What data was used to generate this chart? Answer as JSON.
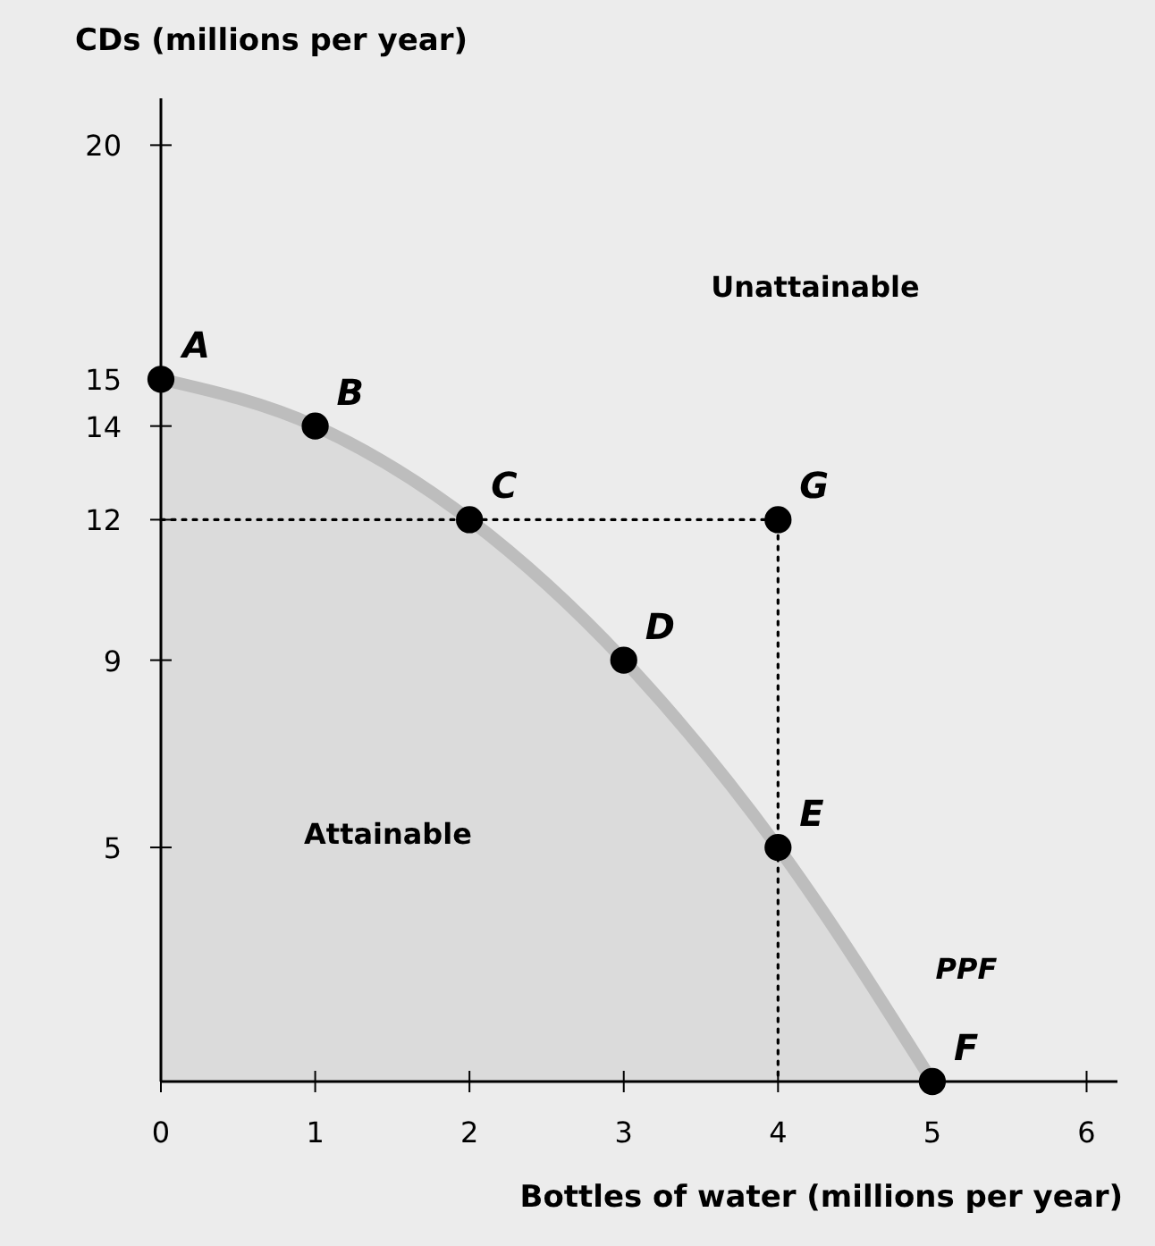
{
  "chart_data": {
    "type": "line",
    "ylabel": "CDs (millions per year)",
    "xlabel": "Bottles of water (millions per year)",
    "xlim": [
      0,
      6.2
    ],
    "xticks": [
      0,
      1,
      2,
      3,
      4,
      5,
      6
    ],
    "ylim": [
      0,
      21
    ],
    "yticks": [
      5,
      9,
      12,
      14,
      15,
      20
    ],
    "grid": false,
    "legend": false,
    "series": [
      {
        "type": "area",
        "name": "PPF",
        "color": "#bdbdbd",
        "x": [
          0,
          1,
          2,
          3,
          4,
          5
        ],
        "values": [
          15,
          14,
          12,
          9,
          5,
          0
        ]
      },
      {
        "color": "#000000",
        "x": [
          0,
          4,
          4
        ],
        "values": [
          12,
          12,
          0
        ],
        "line_style": "dotted"
      },
      {
        "type": "scatter",
        "color": "#000000",
        "x": [
          0,
          1,
          2,
          3,
          4,
          5,
          4
        ],
        "values": [
          15,
          14,
          12,
          9,
          5,
          0,
          12
        ],
        "marker": "circle"
      }
    ],
    "annotations": [
      {
        "text": "A",
        "x": 0,
        "y": 15
      },
      {
        "text": "B",
        "x": 1,
        "y": 14
      },
      {
        "text": "C",
        "x": 2,
        "y": 12
      },
      {
        "text": "D",
        "x": 3,
        "y": 9
      },
      {
        "text": "E",
        "x": 4,
        "y": 5
      },
      {
        "text": "F",
        "x": 5,
        "y": 0
      },
      {
        "text": "G",
        "x": 4,
        "y": 12
      },
      "Unattainable",
      "Attainable"
    ]
  }
}
